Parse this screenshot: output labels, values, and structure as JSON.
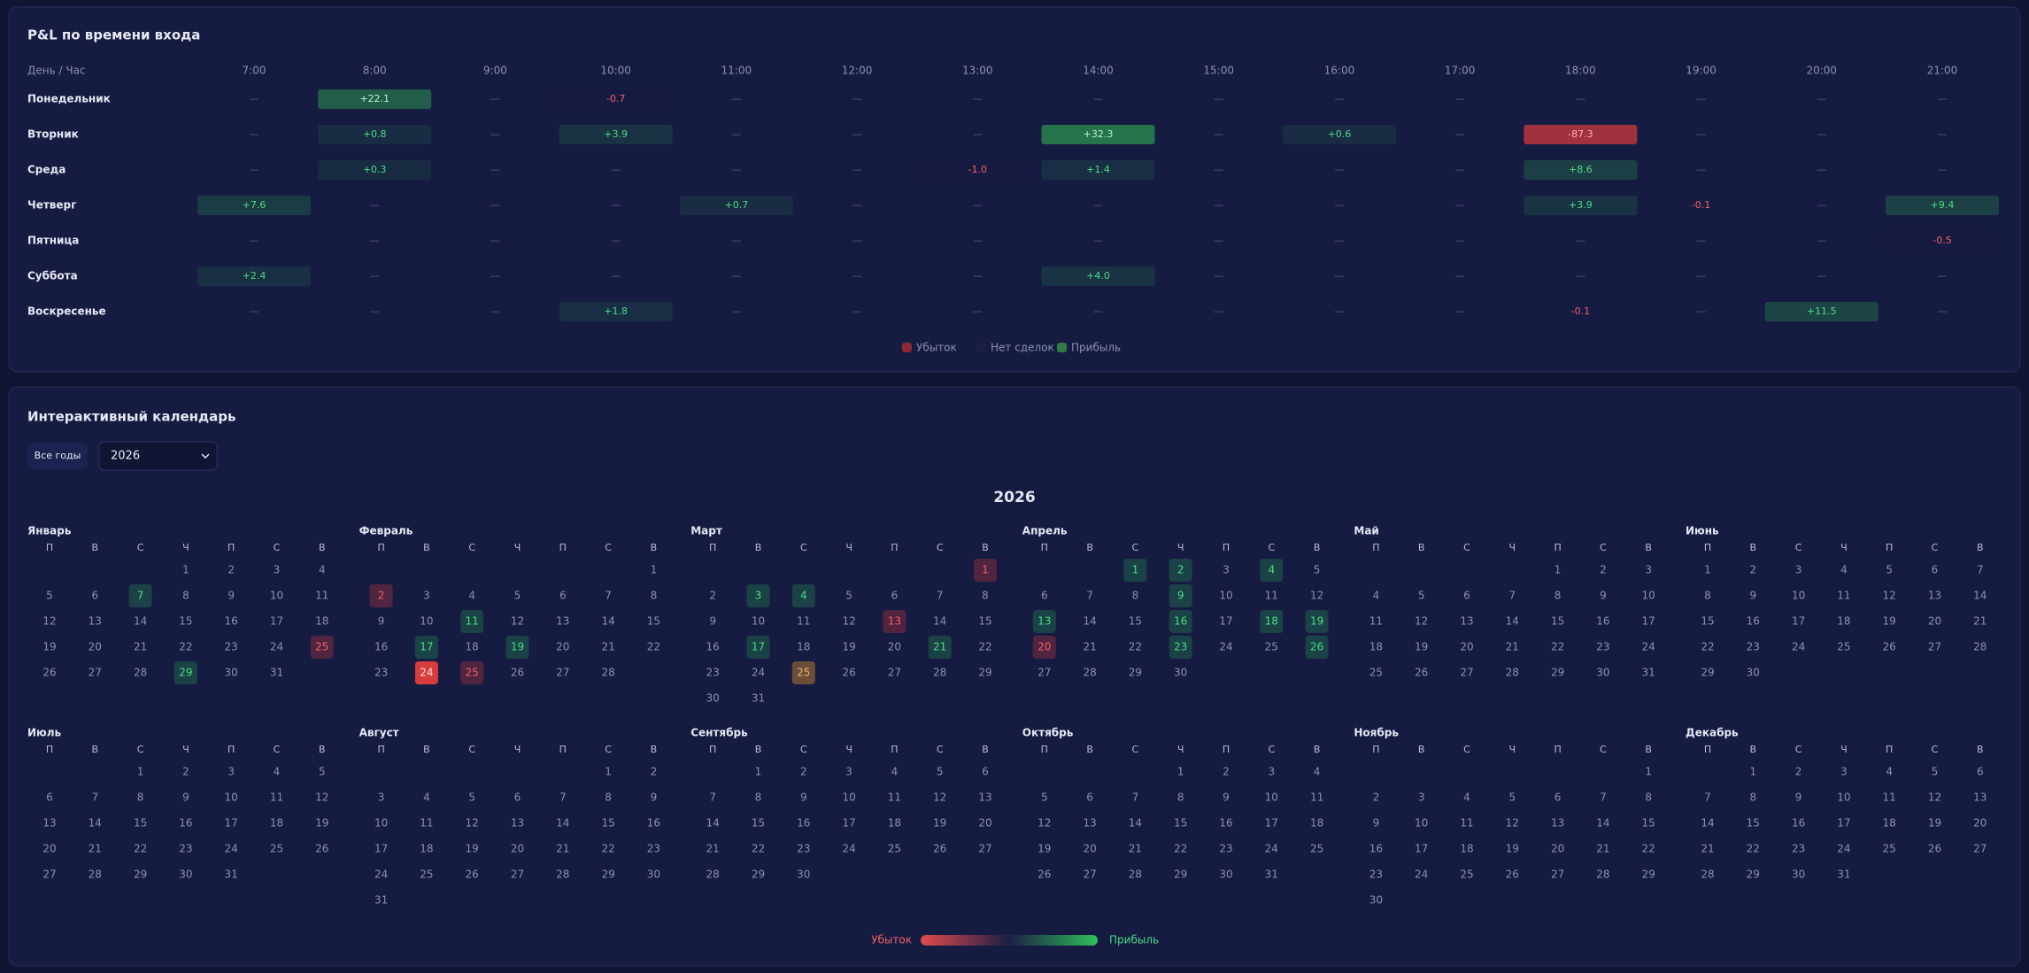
{
  "heatmap": {
    "title": "P&L по времени входа",
    "corner": "День / Час",
    "hours": [
      "7:00",
      "8:00",
      "9:00",
      "10:00",
      "11:00",
      "12:00",
      "13:00",
      "14:00",
      "15:00",
      "16:00",
      "17:00",
      "18:00",
      "19:00",
      "20:00",
      "21:00"
    ],
    "rows": [
      {
        "day": "Понедельник",
        "cells": [
          "—",
          "+22.1",
          "—",
          "-0.7",
          "—",
          "—",
          "—",
          "—",
          "—",
          "—",
          "—",
          "—",
          "—",
          "—",
          "—"
        ]
      },
      {
        "day": "Вторник",
        "cells": [
          "—",
          "+0.8",
          "—",
          "+3.9",
          "—",
          "—",
          "—",
          "+32.3",
          "—",
          "+0.6",
          "—",
          "-87.3",
          "—",
          "—",
          "—"
        ]
      },
      {
        "day": "Среда",
        "cells": [
          "—",
          "+0.3",
          "—",
          "—",
          "—",
          "—",
          "-1.0",
          "+1.4",
          "—",
          "—",
          "—",
          "+8.6",
          "—",
          "—",
          "—"
        ]
      },
      {
        "day": "Четверг",
        "cells": [
          "+7.6",
          "—",
          "—",
          "—",
          "+0.7",
          "—",
          "—",
          "—",
          "—",
          "—",
          "—",
          "+3.9",
          "-0.1",
          "—",
          "+9.4"
        ]
      },
      {
        "day": "Пятница",
        "cells": [
          "—",
          "—",
          "—",
          "—",
          "—",
          "—",
          "—",
          "—",
          "—",
          "—",
          "—",
          "—",
          "—",
          "—",
          "-0.5"
        ]
      },
      {
        "day": "Суббота",
        "cells": [
          "+2.4",
          "—",
          "—",
          "—",
          "—",
          "—",
          "—",
          "+4.0",
          "—",
          "—",
          "—",
          "—",
          "—",
          "—",
          "—"
        ]
      },
      {
        "day": "Воскресенье",
        "cells": [
          "—",
          "—",
          "—",
          "+1.8",
          "—",
          "—",
          "—",
          "—",
          "—",
          "—",
          "—",
          "-0.1",
          "—",
          "+11.5",
          "—"
        ]
      }
    ],
    "legend": [
      "Убыток",
      "Нет сделок",
      "Прибыль"
    ]
  },
  "calendar": {
    "title": "Интерактивный календарь",
    "all_years": "Все годы",
    "selected_year": "2026",
    "year_heading": "2026",
    "weekdays": [
      "П",
      "В",
      "С",
      "Ч",
      "П",
      "С",
      "В"
    ],
    "months": [
      {
        "name": "Январь",
        "offset": 3,
        "days": [
          1,
          2,
          3,
          4,
          5,
          6,
          7,
          8,
          9,
          10,
          11,
          12,
          13,
          14,
          15,
          16,
          17,
          18,
          19,
          20,
          21,
          22,
          23,
          24,
          25,
          26,
          27,
          28,
          29,
          30,
          31
        ],
        "marked": {
          "7": "profit",
          "25": "loss",
          "29": "profit"
        }
      },
      {
        "name": "Февраль",
        "offset": 6,
        "days": [
          1,
          2,
          3,
          4,
          5,
          6,
          7,
          8,
          9,
          10,
          11,
          12,
          13,
          14,
          15,
          16,
          17,
          18,
          19,
          20,
          21,
          22,
          23,
          24,
          25,
          26,
          27,
          28
        ],
        "marked": {
          "2": "loss",
          "11": "profit",
          "17": "profit",
          "19": "profit",
          "24": "loss-strong",
          "25": "loss"
        }
      },
      {
        "name": "Март",
        "offset": 6,
        "days": [
          1,
          2,
          3,
          4,
          5,
          6,
          7,
          8,
          9,
          10,
          11,
          12,
          13,
          14,
          15,
          16,
          17,
          18,
          19,
          20,
          21,
          22,
          23,
          24,
          25,
          26,
          27,
          28,
          29,
          30,
          31
        ],
        "marked": {
          "1": "loss",
          "3": "profit",
          "4": "profit",
          "13": "loss",
          "17": "profit",
          "21": "profit",
          "25": "mixed"
        }
      },
      {
        "name": "Апрель",
        "offset": 2,
        "days": [
          1,
          2,
          3,
          4,
          5,
          6,
          7,
          8,
          9,
          10,
          11,
          12,
          13,
          14,
          15,
          16,
          17,
          18,
          19,
          20,
          21,
          22,
          23,
          24,
          25,
          26,
          27,
          28,
          29,
          30
        ],
        "marked": {
          "1": "profit",
          "2": "profit",
          "4": "profit",
          "9": "profit",
          "13": "profit",
          "16": "profit",
          "18": "profit",
          "19": "profit",
          "20": "loss",
          "23": "profit",
          "26": "profit"
        }
      },
      {
        "name": "Май",
        "offset": 4,
        "days": [
          1,
          2,
          3,
          4,
          5,
          6,
          7,
          8,
          9,
          10,
          11,
          12,
          13,
          14,
          15,
          16,
          17,
          18,
          19,
          20,
          21,
          22,
          23,
          24,
          25,
          26,
          27,
          28,
          29,
          30,
          31
        ],
        "marked": {}
      },
      {
        "name": "Июнь",
        "offset": 0,
        "days": [
          1,
          2,
          3,
          4,
          5,
          6,
          7,
          8,
          9,
          10,
          11,
          12,
          13,
          14,
          15,
          16,
          17,
          18,
          19,
          20,
          21,
          22,
          23,
          24,
          25,
          26,
          27,
          28,
          29,
          30
        ],
        "marked": {}
      },
      {
        "name": "Июль",
        "offset": 2,
        "days": [
          1,
          2,
          3,
          4,
          5,
          6,
          7,
          8,
          9,
          10,
          11,
          12,
          13,
          14,
          15,
          16,
          17,
          18,
          19,
          20,
          21,
          22,
          23,
          24,
          25,
          26,
          27,
          28,
          29,
          30,
          31
        ],
        "marked": {}
      },
      {
        "name": "Август",
        "offset": 5,
        "days": [
          1,
          2,
          3,
          4,
          5,
          6,
          7,
          8,
          9,
          10,
          11,
          12,
          13,
          14,
          15,
          16,
          17,
          18,
          19,
          20,
          21,
          22,
          23,
          24,
          25,
          26,
          27,
          28,
          29,
          30,
          31
        ],
        "marked": {}
      },
      {
        "name": "Сентябрь",
        "offset": 1,
        "days": [
          1,
          2,
          3,
          4,
          5,
          6,
          7,
          8,
          9,
          10,
          11,
          12,
          13,
          14,
          15,
          16,
          17,
          18,
          19,
          20,
          21,
          22,
          23,
          24,
          25,
          26,
          27,
          28,
          29,
          30
        ],
        "marked": {}
      },
      {
        "name": "Октябрь",
        "offset": 3,
        "days": [
          1,
          2,
          3,
          4,
          5,
          6,
          7,
          8,
          9,
          10,
          11,
          12,
          13,
          14,
          15,
          16,
          17,
          18,
          19,
          20,
          21,
          22,
          23,
          24,
          25,
          26,
          27,
          28,
          29,
          30,
          31
        ],
        "marked": {}
      },
      {
        "name": "Ноябрь",
        "offset": 6,
        "days": [
          1,
          2,
          3,
          4,
          5,
          6,
          7,
          8,
          9,
          10,
          11,
          12,
          13,
          14,
          15,
          16,
          17,
          18,
          19,
          20,
          21,
          22,
          23,
          24,
          25,
          26,
          27,
          28,
          29,
          30
        ],
        "marked": {}
      },
      {
        "name": "Декабрь",
        "offset": 1,
        "days": [
          1,
          2,
          3,
          4,
          5,
          6,
          7,
          8,
          9,
          10,
          11,
          12,
          13,
          14,
          15,
          16,
          17,
          18,
          19,
          20,
          21,
          22,
          23,
          24,
          25,
          26,
          27,
          28,
          29,
          30,
          31
        ],
        "marked": {}
      }
    ],
    "legend": {
      "loss": "Убыток",
      "profit": "Прибыль"
    }
  }
}
